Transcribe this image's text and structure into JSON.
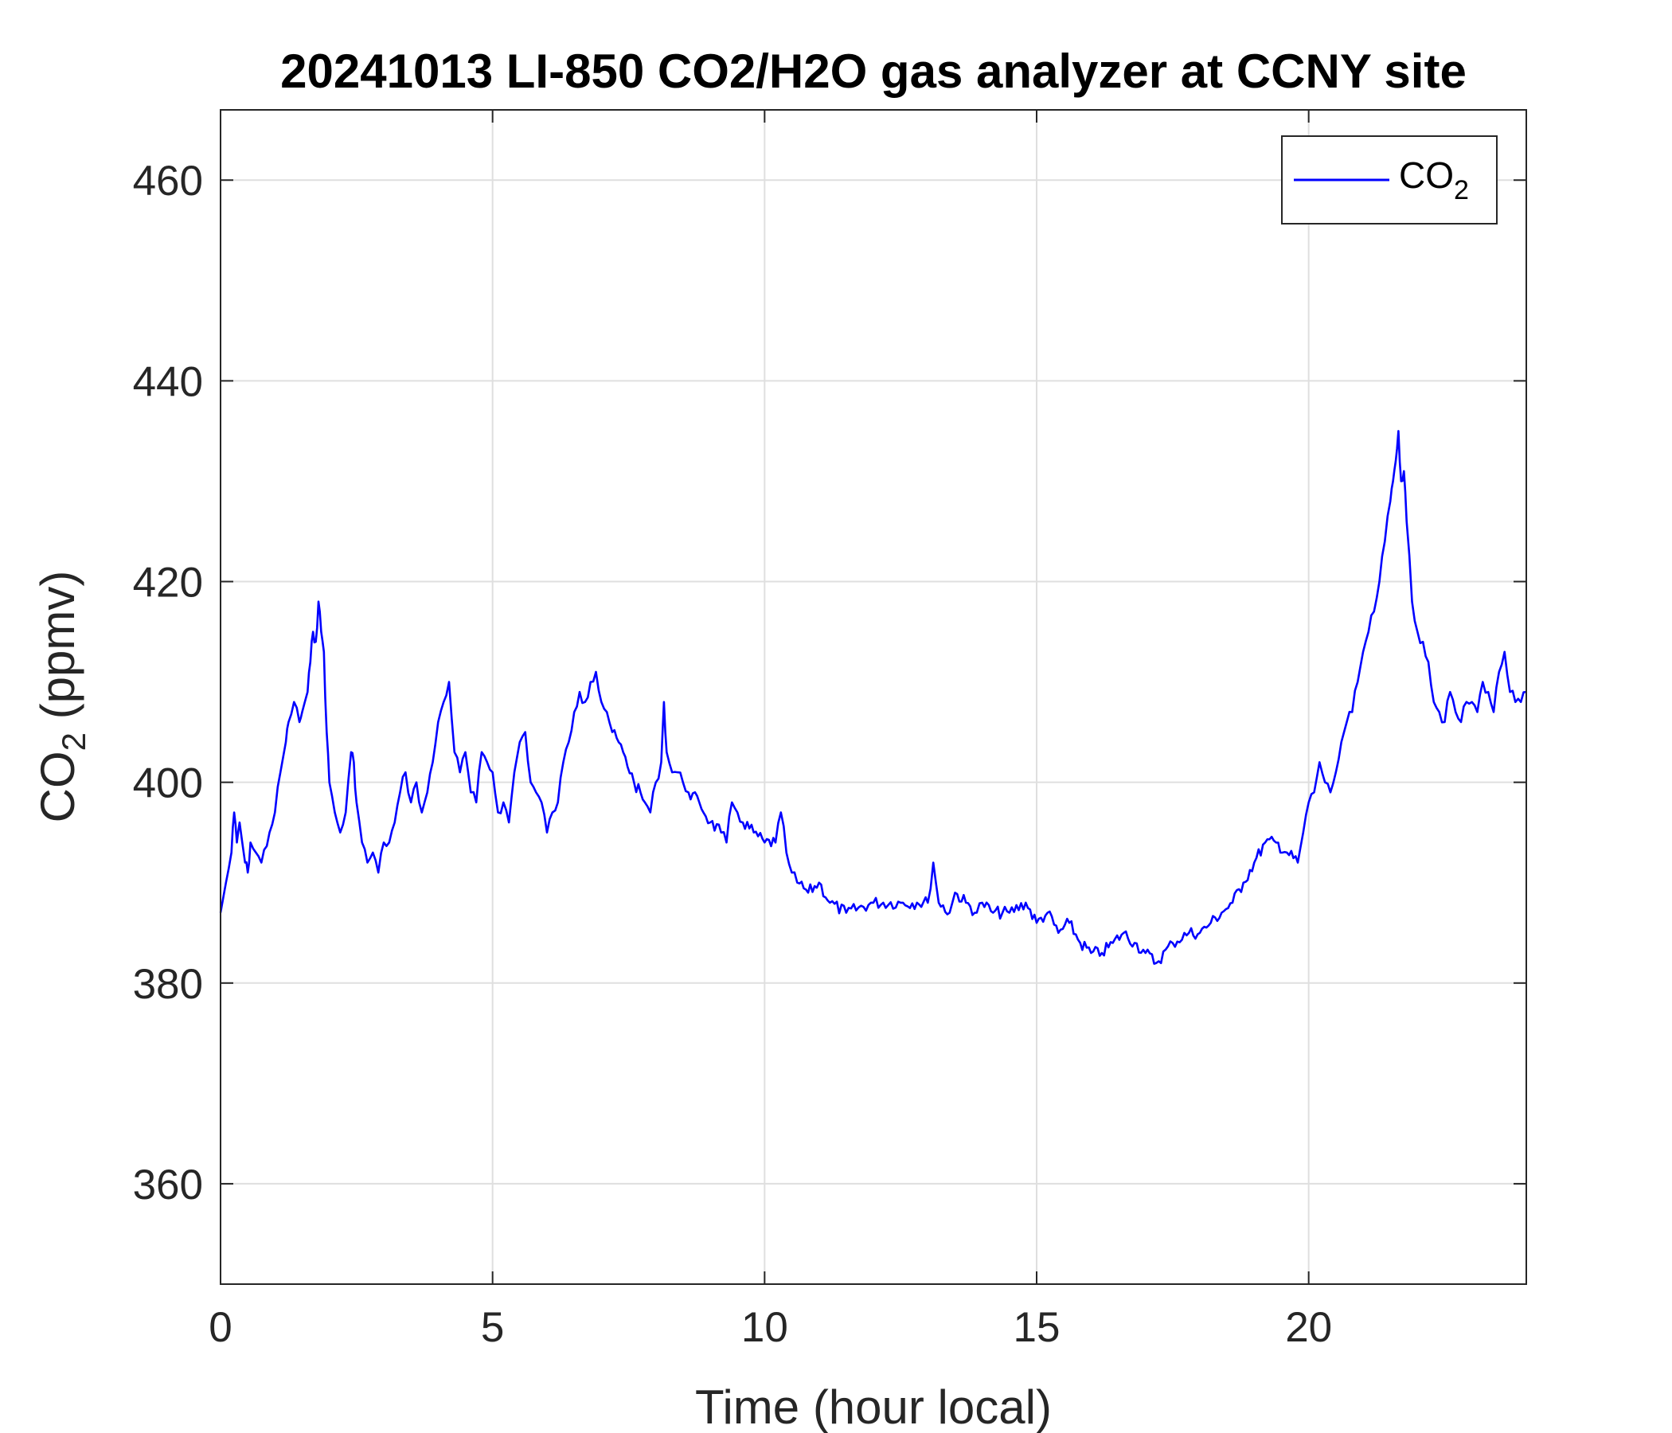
{
  "chart_data": {
    "type": "line",
    "title": "20241013 LI-850 CO2/H2O gas analyzer at CCNY site",
    "xlabel": "Time (hour local)",
    "ylabel": "CO2 (ppmv)",
    "ylabel_main": "CO",
    "ylabel_sub": "2",
    "ylabel_rest": " (ppmv)",
    "xlim": [
      0,
      24
    ],
    "ylim": [
      350,
      467
    ],
    "xticks": [
      0,
      5,
      10,
      15,
      20
    ],
    "yticks": [
      360,
      380,
      400,
      420,
      440,
      460
    ],
    "grid": true,
    "legend_position": "top-right",
    "series": [
      {
        "name": "CO2",
        "legend_main": "CO",
        "legend_sub": "2",
        "color": "#0000ff",
        "x": [
          0,
          0.1,
          0.2,
          0.25,
          0.3,
          0.35,
          0.45,
          0.5,
          0.55,
          0.65,
          0.75,
          0.9,
          1.0,
          1.1,
          1.2,
          1.25,
          1.35,
          1.45,
          1.5,
          1.6,
          1.65,
          1.7,
          1.75,
          1.8,
          1.85,
          1.9,
          1.95,
          2.0,
          2.1,
          2.2,
          2.3,
          2.4,
          2.45,
          2.5,
          2.6,
          2.7,
          2.8,
          2.9,
          3.0,
          3.1,
          3.2,
          3.3,
          3.4,
          3.5,
          3.6,
          3.7,
          3.8,
          3.9,
          4.0,
          4.1,
          4.2,
          4.3,
          4.4,
          4.5,
          4.6,
          4.7,
          4.8,
          4.9,
          5.0,
          5.1,
          5.2,
          5.3,
          5.4,
          5.5,
          5.6,
          5.7,
          5.8,
          5.9,
          6.0,
          6.1,
          6.2,
          6.3,
          6.4,
          6.5,
          6.6,
          6.7,
          6.8,
          6.9,
          7.0,
          7.1,
          7.2,
          7.4,
          7.6,
          7.8,
          7.9,
          8.0,
          8.1,
          8.15,
          8.2,
          8.3,
          8.4,
          8.5,
          8.6,
          8.8,
          9.0,
          9.2,
          9.3,
          9.4,
          9.5,
          9.6,
          9.8,
          10.0,
          10.2,
          10.3,
          10.4,
          10.5,
          10.6,
          10.8,
          11.0,
          11.2,
          11.5,
          12.0,
          12.5,
          12.8,
          13.0,
          13.1,
          13.2,
          13.4,
          13.5,
          13.7,
          13.9,
          14.0,
          14.2,
          14.5,
          14.8,
          15.0,
          15.2,
          15.4,
          15.6,
          15.8,
          16.0,
          16.2,
          16.4,
          16.6,
          16.8,
          17.0,
          17.2,
          17.5,
          17.8,
          18.0,
          18.2,
          18.4,
          18.6,
          18.8,
          19.0,
          19.2,
          19.4,
          19.6,
          19.8,
          19.9,
          20.0,
          20.1,
          20.2,
          20.3,
          20.4,
          20.5,
          20.6,
          20.7,
          20.8,
          20.9,
          21.0,
          21.1,
          21.2,
          21.3,
          21.4,
          21.5,
          21.55,
          21.6,
          21.65,
          21.7,
          21.75,
          21.8,
          21.9,
          22.0,
          22.1,
          22.2,
          22.3,
          22.4,
          22.5,
          22.6,
          22.7,
          22.8,
          22.9,
          23.0,
          23.1,
          23.2,
          23.3,
          23.4,
          23.5,
          23.6,
          23.7,
          23.8,
          23.9,
          24.0
        ],
        "y": [
          387,
          390,
          393,
          397,
          394,
          396,
          392,
          391,
          394,
          393,
          392,
          395,
          397,
          401,
          404,
          406,
          408,
          406,
          407,
          409,
          412,
          415,
          414,
          418,
          415,
          413,
          405,
          400,
          397,
          395,
          397,
          403,
          402,
          398,
          394,
          392,
          393,
          391,
          394,
          394,
          396,
          399,
          401,
          398,
          400,
          397,
          399,
          402,
          406,
          408,
          410,
          403,
          401,
          403,
          399,
          398,
          403,
          402,
          401,
          397,
          398,
          396,
          401,
          404,
          405,
          400,
          399,
          398,
          395,
          397,
          398,
          402,
          404,
          407,
          409,
          408,
          410,
          411,
          408,
          407,
          405,
          403,
          400,
          398,
          397,
          400,
          402,
          408,
          403,
          401,
          401,
          400,
          399,
          398,
          396,
          395,
          394,
          398,
          397,
          396,
          395,
          394,
          394,
          397,
          393,
          391,
          390,
          389,
          390,
          388,
          387,
          388,
          388,
          388,
          388,
          392,
          388,
          387,
          389,
          388,
          387,
          388,
          387,
          387,
          388,
          386,
          387,
          385,
          386,
          384,
          383,
          383,
          384,
          385,
          384,
          383,
          382,
          384,
          385,
          385,
          386,
          387,
          388,
          390,
          392,
          394,
          394,
          393,
          392,
          395,
          398,
          399,
          402,
          400,
          399,
          401,
          404,
          406,
          407,
          410,
          413,
          415,
          417,
          420,
          424,
          428,
          430,
          432,
          435,
          430,
          431,
          426,
          418,
          415,
          414,
          412,
          408,
          407,
          406,
          409,
          407,
          406,
          408,
          408,
          407,
          410,
          409,
          407,
          411,
          413,
          409,
          408,
          408,
          409
        ]
      }
    ]
  }
}
